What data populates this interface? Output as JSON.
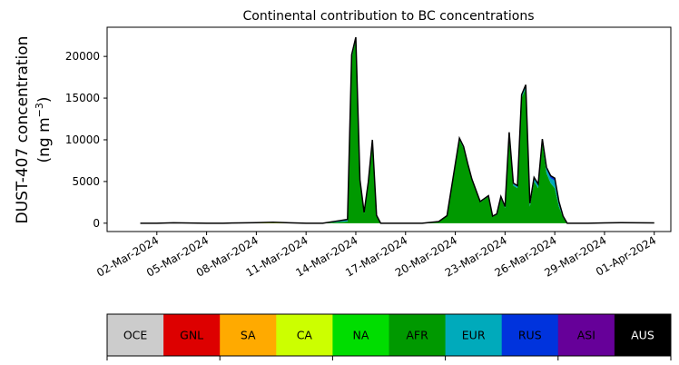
{
  "chart_data": {
    "type": "area",
    "stacked": true,
    "title": "Continental contribution to BC concentrations",
    "ylabel_line1": "DUST-407 concentration",
    "ylabel_line2_prefix": "(ng m",
    "ylabel_line2_sup": "−3",
    "ylabel_line2_suffix": ")",
    "xlabel": "",
    "ylim": [
      -1000,
      23500
    ],
    "yticks": [
      0,
      5000,
      10000,
      15000,
      20000
    ],
    "ytick_labels": [
      "0",
      "5000",
      "10000",
      "15000",
      "20000"
    ],
    "xlim": [
      "2024-02-28",
      "2024-04-02"
    ],
    "xticks": [
      "2024-03-02",
      "2024-03-05",
      "2024-03-08",
      "2024-03-11",
      "2024-03-14",
      "2024-03-17",
      "2024-03-20",
      "2024-03-23",
      "2024-03-26",
      "2024-03-29",
      "2024-04-01"
    ],
    "xtick_labels": [
      "02-Mar-2024",
      "05-Mar-2024",
      "08-Mar-2024",
      "11-Mar-2024",
      "14-Mar-2024",
      "17-Mar-2024",
      "20-Mar-2024",
      "23-Mar-2024",
      "26-Mar-2024",
      "29-Mar-2024",
      "01-Apr-2024"
    ],
    "legend_placement": "bottom",
    "grid": false,
    "x": [
      "2024-03-01",
      "2024-03-02",
      "2024-03-03",
      "2024-03-04",
      "2024-03-05",
      "2024-03-06",
      "2024-03-07",
      "2024-03-08",
      "2024-03-09",
      "2024-03-10",
      "2024-03-11",
      "2024-03-12",
      "2024-03-13",
      "2024-03-13T12:00",
      "2024-03-13T18:00",
      "2024-03-14",
      "2024-03-14T06:00",
      "2024-03-14T12:00",
      "2024-03-14T18:00",
      "2024-03-15",
      "2024-03-15T06:00",
      "2024-03-15T12:00",
      "2024-03-15T18:00",
      "2024-03-16",
      "2024-03-16T12:00",
      "2024-03-17",
      "2024-03-18",
      "2024-03-19",
      "2024-03-19T12:00",
      "2024-03-20",
      "2024-03-20T06:00",
      "2024-03-20T12:00",
      "2024-03-20T18:00",
      "2024-03-21",
      "2024-03-21T12:00",
      "2024-03-22",
      "2024-03-22T06:00",
      "2024-03-22T12:00",
      "2024-03-22T18:00",
      "2024-03-23",
      "2024-03-23T06:00",
      "2024-03-23T12:00",
      "2024-03-23T18:00",
      "2024-03-24",
      "2024-03-24T06:00",
      "2024-03-24T12:00",
      "2024-03-24T18:00",
      "2024-03-25",
      "2024-03-25T06:00",
      "2024-03-25T12:00",
      "2024-03-25T18:00",
      "2024-03-26",
      "2024-03-26T06:00",
      "2024-03-26T12:00",
      "2024-03-26T18:00",
      "2024-03-27",
      "2024-03-27T06:00",
      "2024-03-27T12:00",
      "2024-03-27T18:00",
      "2024-03-28",
      "2024-03-29",
      "2024-03-30",
      "2024-03-31",
      "2024-04-01"
    ],
    "series": [
      {
        "name": "OCE",
        "color": "#cccccc",
        "values": [
          0,
          0,
          0,
          0,
          0,
          0,
          0,
          0,
          0,
          0,
          0,
          0,
          0,
          0,
          0,
          0,
          0,
          0,
          0,
          0,
          0,
          0,
          0,
          0,
          0,
          0,
          0,
          0,
          0,
          0,
          0,
          0,
          0,
          0,
          0,
          0,
          0,
          0,
          0,
          0,
          0,
          0,
          0,
          0,
          0,
          0,
          0,
          0,
          0,
          0,
          0,
          0,
          0,
          0,
          0,
          0,
          0,
          0,
          0,
          0,
          0,
          0,
          0,
          0
        ]
      },
      {
        "name": "GNL",
        "color": "#dd0000",
        "values": [
          0,
          0,
          0,
          0,
          0,
          0,
          0,
          0,
          0,
          0,
          0,
          0,
          0,
          0,
          0,
          0,
          0,
          0,
          0,
          0,
          0,
          0,
          0,
          0,
          0,
          0,
          0,
          0,
          0,
          0,
          0,
          0,
          0,
          0,
          0,
          0,
          0,
          0,
          0,
          0,
          0,
          0,
          0,
          0,
          0,
          0,
          0,
          0,
          0,
          0,
          0,
          0,
          0,
          0,
          0,
          0,
          0,
          0,
          0,
          0,
          0,
          0,
          0,
          0
        ]
      },
      {
        "name": "SA",
        "color": "#ffaa00",
        "values": [
          0,
          0,
          0,
          0,
          0,
          0,
          0,
          0,
          0,
          0,
          0,
          0,
          0,
          0,
          0,
          0,
          0,
          0,
          0,
          0,
          0,
          0,
          0,
          0,
          0,
          0,
          0,
          0,
          0,
          0,
          0,
          0,
          0,
          0,
          0,
          0,
          0,
          0,
          0,
          0,
          0,
          0,
          0,
          0,
          0,
          0,
          0,
          0,
          0,
          0,
          0,
          0,
          0,
          0,
          0,
          0,
          0,
          0,
          0,
          0,
          0,
          0,
          0,
          0
        ]
      },
      {
        "name": "CA",
        "color": "#ccff00",
        "values": [
          0,
          0,
          30,
          20,
          0,
          0,
          40,
          60,
          80,
          50,
          0,
          0,
          0,
          0,
          0,
          0,
          0,
          0,
          0,
          0,
          0,
          0,
          0,
          0,
          0,
          0,
          0,
          0,
          0,
          0,
          0,
          0,
          0,
          0,
          0,
          0,
          0,
          0,
          0,
          0,
          0,
          0,
          0,
          0,
          0,
          0,
          0,
          0,
          0,
          0,
          0,
          0,
          0,
          0,
          0,
          0,
          0,
          0,
          0,
          0,
          40,
          60,
          50,
          40
        ]
      },
      {
        "name": "NA",
        "color": "#00dd00",
        "values": [
          0,
          0,
          20,
          0,
          0,
          0,
          0,
          0,
          30,
          0,
          0,
          0,
          0,
          0,
          0,
          0,
          0,
          0,
          0,
          0,
          0,
          0,
          0,
          0,
          0,
          0,
          0,
          0,
          0,
          0,
          0,
          0,
          0,
          0,
          0,
          0,
          0,
          0,
          0,
          0,
          0,
          0,
          0,
          0,
          0,
          0,
          0,
          0,
          0,
          0,
          0,
          0,
          0,
          0,
          0,
          0,
          0,
          0,
          0,
          0,
          0,
          0,
          0,
          0
        ]
      },
      {
        "name": "AFR",
        "color": "#009900",
        "values": [
          0,
          0,
          0,
          0,
          0,
          0,
          0,
          0,
          0,
          0,
          0,
          0,
          150,
          200,
          19800,
          22000,
          5000,
          1200,
          4800,
          9800,
          900,
          0,
          0,
          0,
          0,
          0,
          0,
          200,
          900,
          7000,
          10000,
          9000,
          7000,
          5200,
          2500,
          3200,
          800,
          1000,
          3000,
          1800,
          10500,
          4500,
          4200,
          15000,
          16200,
          2000,
          5000,
          4200,
          9700,
          6000,
          4800,
          4200,
          2000,
          700,
          0,
          0,
          0,
          0,
          0,
          0,
          0,
          0,
          0,
          0
        ]
      },
      {
        "name": "EUR",
        "color": "#00aabb",
        "values": [
          0,
          0,
          0,
          0,
          0,
          0,
          0,
          0,
          0,
          0,
          0,
          0,
          100,
          150,
          200,
          200,
          150,
          100,
          100,
          200,
          50,
          0,
          0,
          0,
          0,
          0,
          0,
          0,
          0,
          100,
          200,
          200,
          150,
          100,
          100,
          100,
          50,
          100,
          200,
          200,
          300,
          200,
          200,
          300,
          300,
          300,
          400,
          400,
          300,
          500,
          600,
          900,
          400,
          100,
          0,
          0,
          0,
          0,
          0,
          0,
          0,
          0,
          0,
          0
        ]
      },
      {
        "name": "RUS",
        "color": "#0033dd",
        "values": [
          0,
          0,
          0,
          0,
          0,
          0,
          0,
          0,
          0,
          0,
          0,
          0,
          50,
          100,
          200,
          100,
          50,
          0,
          0,
          0,
          0,
          0,
          0,
          0,
          0,
          0,
          0,
          0,
          0,
          0,
          0,
          0,
          0,
          0,
          0,
          0,
          0,
          0,
          0,
          0,
          100,
          100,
          100,
          100,
          100,
          100,
          100,
          100,
          100,
          200,
          300,
          300,
          200,
          50,
          0,
          0,
          0,
          0,
          0,
          0,
          0,
          0,
          0,
          0
        ]
      },
      {
        "name": "ASI",
        "color": "#660099",
        "values": [
          0,
          0,
          0,
          0,
          0,
          0,
          0,
          0,
          0,
          0,
          0,
          0,
          0,
          0,
          0,
          0,
          0,
          0,
          0,
          0,
          0,
          0,
          0,
          0,
          0,
          0,
          0,
          0,
          0,
          0,
          0,
          0,
          0,
          0,
          0,
          0,
          0,
          0,
          0,
          0,
          0,
          0,
          0,
          0,
          0,
          0,
          0,
          0,
          0,
          0,
          0,
          0,
          0,
          0,
          0,
          0,
          0,
          0,
          0,
          0,
          0,
          0,
          0,
          0
        ]
      },
      {
        "name": "AUS",
        "color": "#000000",
        "values": [
          0,
          0,
          0,
          0,
          0,
          0,
          0,
          0,
          0,
          0,
          0,
          0,
          0,
          0,
          0,
          0,
          0,
          0,
          0,
          0,
          0,
          0,
          0,
          0,
          0,
          0,
          0,
          0,
          0,
          0,
          0,
          0,
          0,
          0,
          0,
          0,
          0,
          0,
          0,
          0,
          0,
          0,
          0,
          0,
          0,
          0,
          0,
          0,
          0,
          0,
          0,
          0,
          0,
          0,
          0,
          0,
          0,
          0,
          0,
          0,
          0,
          0,
          0,
          0
        ]
      }
    ],
    "total_line_color": "#000000"
  }
}
